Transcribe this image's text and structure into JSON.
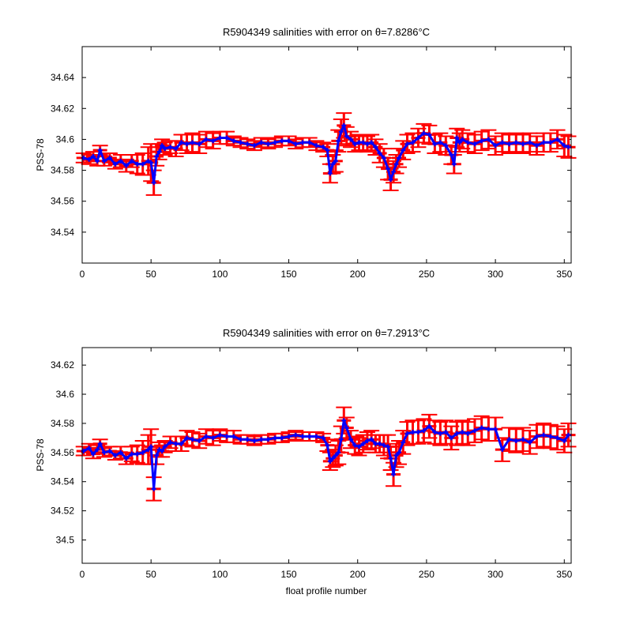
{
  "chart_data": [
    {
      "type": "scatter",
      "title": "R5904349 salinities with error on θ=7.8286°C",
      "xlabel": "",
      "ylabel": "PSS-78",
      "xlim": [
        0,
        355
      ],
      "ylim": [
        34.52,
        34.66
      ],
      "xticks": [
        "0",
        "50",
        "100",
        "150",
        "200",
        "250",
        "300",
        "350"
      ],
      "yticks": [
        "34.54",
        "34.56",
        "34.58",
        "34.6",
        "34.62",
        "34.64"
      ],
      "grid": false,
      "colors": {
        "salinity": "#0000ff",
        "error": "#ff0000"
      },
      "x": [
        1,
        5,
        8,
        11,
        13,
        16,
        20,
        24,
        28,
        32,
        36,
        40,
        44,
        48,
        50,
        52,
        54,
        56,
        58,
        60,
        64,
        68,
        72,
        76,
        80,
        85,
        90,
        95,
        100,
        105,
        110,
        115,
        120,
        125,
        130,
        135,
        140,
        145,
        150,
        155,
        160,
        165,
        170,
        175,
        178,
        180,
        182,
        184,
        186,
        188,
        190,
        192,
        195,
        198,
        201,
        204,
        207,
        210,
        213,
        216,
        219,
        222,
        224,
        226,
        228,
        230,
        233,
        236,
        240,
        244,
        248,
        252,
        256,
        260,
        264,
        268,
        270,
        272,
        274,
        276,
        280,
        285,
        290,
        295,
        300,
        305,
        310,
        315,
        320,
        325,
        330,
        335,
        340,
        345,
        350,
        353
      ],
      "y": [
        34.588,
        34.587,
        34.589,
        34.586,
        34.593,
        34.586,
        34.588,
        34.584,
        34.586,
        34.583,
        34.586,
        34.584,
        34.584,
        34.586,
        34.585,
        34.572,
        34.589,
        34.592,
        34.596,
        34.594,
        34.595,
        34.594,
        34.598,
        34.597,
        34.598,
        34.597,
        34.6,
        34.599,
        34.601,
        34.601,
        34.599,
        34.598,
        34.597,
        34.596,
        34.598,
        34.597,
        34.598,
        34.599,
        34.599,
        34.597,
        34.598,
        34.598,
        34.596,
        34.595,
        34.593,
        34.578,
        34.584,
        34.586,
        34.599,
        34.605,
        34.609,
        34.602,
        34.6,
        34.597,
        34.598,
        34.598,
        34.597,
        34.598,
        34.595,
        34.591,
        34.588,
        34.581,
        34.574,
        34.579,
        34.584,
        34.588,
        34.593,
        34.597,
        34.598,
        34.601,
        34.604,
        34.603,
        34.597,
        34.598,
        34.596,
        34.59,
        34.584,
        34.601,
        34.598,
        34.6,
        34.598,
        34.597,
        34.599,
        34.6,
        34.596,
        34.598,
        34.597,
        34.598,
        34.597,
        34.598,
        34.596,
        34.598,
        34.598,
        34.6,
        34.596,
        34.595
      ],
      "err": [
        0.003,
        0.003,
        0.003,
        0.003,
        0.003,
        0.003,
        0.003,
        0.003,
        0.004,
        0.004,
        0.004,
        0.006,
        0.007,
        0.009,
        0.012,
        0.008,
        0.006,
        0.005,
        0.004,
        0.004,
        0.004,
        0.005,
        0.005,
        0.006,
        0.006,
        0.006,
        0.005,
        0.005,
        0.004,
        0.004,
        0.003,
        0.003,
        0.003,
        0.003,
        0.003,
        0.003,
        0.003,
        0.003,
        0.003,
        0.003,
        0.003,
        0.003,
        0.003,
        0.003,
        0.004,
        0.006,
        0.006,
        0.007,
        0.007,
        0.008,
        0.008,
        0.006,
        0.005,
        0.005,
        0.005,
        0.005,
        0.005,
        0.005,
        0.005,
        0.006,
        0.006,
        0.007,
        0.007,
        0.007,
        0.006,
        0.006,
        0.006,
        0.006,
        0.006,
        0.006,
        0.006,
        0.006,
        0.006,
        0.006,
        0.006,
        0.006,
        0.006,
        0.006,
        0.006,
        0.006,
        0.006,
        0.006,
        0.006,
        0.006,
        0.006,
        0.006,
        0.006,
        0.006,
        0.006,
        0.006,
        0.006,
        0.006,
        0.006,
        0.006,
        0.007,
        0.007
      ]
    },
    {
      "type": "scatter",
      "title": "R5904349 salinities with error on θ=7.2913°C",
      "xlabel": "float profile number",
      "ylabel": "PSS-78",
      "xlim": [
        0,
        355
      ],
      "ylim": [
        34.484,
        34.632
      ],
      "xticks": [
        "0",
        "50",
        "100",
        "150",
        "200",
        "250",
        "300",
        "350"
      ],
      "yticks": [
        "34.5",
        "34.52",
        "34.54",
        "34.56",
        "34.58",
        "34.6",
        "34.62"
      ],
      "grid": false,
      "colors": {
        "salinity": "#0000ff",
        "error": "#ff0000"
      },
      "x": [
        1,
        5,
        8,
        11,
        13,
        16,
        20,
        24,
        28,
        32,
        36,
        40,
        44,
        48,
        50,
        52,
        54,
        56,
        58,
        60,
        64,
        68,
        72,
        76,
        80,
        85,
        90,
        95,
        100,
        105,
        110,
        115,
        120,
        125,
        130,
        135,
        140,
        145,
        150,
        155,
        160,
        165,
        170,
        175,
        178,
        180,
        182,
        184,
        186,
        188,
        190,
        192,
        195,
        198,
        201,
        204,
        207,
        210,
        213,
        216,
        219,
        222,
        224,
        226,
        228,
        230,
        233,
        236,
        240,
        244,
        248,
        252,
        256,
        260,
        264,
        268,
        272,
        276,
        280,
        285,
        290,
        295,
        300,
        305,
        310,
        315,
        320,
        325,
        330,
        335,
        340,
        345,
        350,
        353
      ],
      "y": [
        34.561,
        34.563,
        34.559,
        34.562,
        34.566,
        34.56,
        34.561,
        34.558,
        34.56,
        34.556,
        34.559,
        34.559,
        34.56,
        34.562,
        34.564,
        34.535,
        34.558,
        34.562,
        34.561,
        34.564,
        34.567,
        34.566,
        34.566,
        34.57,
        34.569,
        34.568,
        34.571,
        34.57,
        34.572,
        34.571,
        34.571,
        34.569,
        34.569,
        34.568,
        34.569,
        34.569,
        34.57,
        34.57,
        34.571,
        34.572,
        34.571,
        34.571,
        34.571,
        34.57,
        34.565,
        34.554,
        34.556,
        34.558,
        34.56,
        34.569,
        34.582,
        34.577,
        34.569,
        34.565,
        34.564,
        34.566,
        34.568,
        34.569,
        34.566,
        34.566,
        34.565,
        34.564,
        34.556,
        34.545,
        34.558,
        34.56,
        34.567,
        34.573,
        34.574,
        34.574,
        34.575,
        34.578,
        34.574,
        34.573,
        34.574,
        34.57,
        34.573,
        34.574,
        34.573,
        34.575,
        34.577,
        34.576,
        34.576,
        34.562,
        34.569,
        34.568,
        34.569,
        34.567,
        34.571,
        34.572,
        34.571,
        34.57,
        34.568,
        34.572
      ],
      "err": [
        0.003,
        0.003,
        0.003,
        0.003,
        0.003,
        0.003,
        0.003,
        0.003,
        0.004,
        0.004,
        0.005,
        0.006,
        0.008,
        0.01,
        0.012,
        0.008,
        0.006,
        0.005,
        0.004,
        0.004,
        0.004,
        0.005,
        0.005,
        0.005,
        0.005,
        0.005,
        0.005,
        0.005,
        0.004,
        0.004,
        0.004,
        0.003,
        0.003,
        0.003,
        0.003,
        0.003,
        0.003,
        0.003,
        0.003,
        0.003,
        0.003,
        0.003,
        0.003,
        0.003,
        0.004,
        0.006,
        0.006,
        0.007,
        0.008,
        0.009,
        0.009,
        0.007,
        0.006,
        0.006,
        0.006,
        0.006,
        0.006,
        0.006,
        0.006,
        0.006,
        0.007,
        0.008,
        0.008,
        0.008,
        0.008,
        0.008,
        0.008,
        0.008,
        0.008,
        0.008,
        0.008,
        0.008,
        0.008,
        0.008,
        0.008,
        0.008,
        0.008,
        0.008,
        0.008,
        0.008,
        0.008,
        0.008,
        0.008,
        0.008,
        0.008,
        0.008,
        0.008,
        0.008,
        0.008,
        0.008,
        0.008,
        0.008,
        0.008,
        0.008
      ]
    }
  ]
}
